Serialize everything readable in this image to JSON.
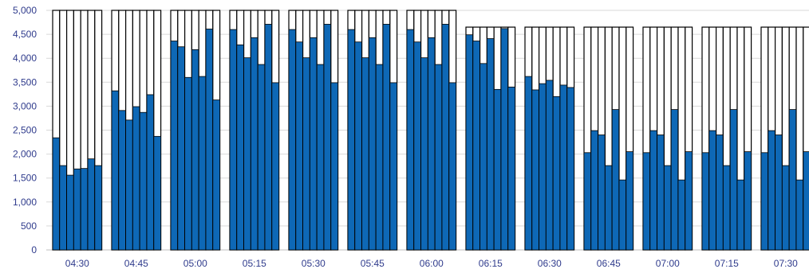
{
  "chart_data": {
    "type": "bar",
    "title": "",
    "xlabel": "",
    "ylabel": "",
    "ylim": [
      0,
      5000
    ],
    "yticks": [
      0,
      500,
      1000,
      1500,
      2000,
      2500,
      3000,
      3500,
      4000,
      4500,
      5000
    ],
    "ytick_labels": [
      "0",
      "500",
      "1,000",
      "1,500",
      "2,000",
      "2,500",
      "3,000",
      "3,500",
      "4,000",
      "4,500",
      "5,000"
    ],
    "grid": true,
    "categories": [
      "04:30",
      "04:45",
      "05:00",
      "05:15",
      "05:30",
      "05:45",
      "06:00",
      "06:15",
      "06:30",
      "06:45",
      "07:00",
      "07:15",
      "07:30"
    ],
    "capacity": [
      5000,
      5000,
      5000,
      5000,
      5000,
      5000,
      5000,
      4650,
      4650,
      4650,
      4650,
      4650,
      4650
    ],
    "values": [
      [
        2340,
        1760,
        1560,
        1690,
        1700,
        1900,
        1760
      ],
      [
        3320,
        2910,
        2710,
        2990,
        2870,
        3240,
        2370
      ],
      [
        4360,
        4240,
        3600,
        4180,
        3620,
        4610,
        3130
      ],
      [
        4600,
        4280,
        4010,
        4430,
        3870,
        4710,
        3490
      ],
      [
        4600,
        4340,
        4010,
        4430,
        3870,
        4710,
        3490
      ],
      [
        4600,
        4340,
        4010,
        4430,
        3870,
        4710,
        3490
      ],
      [
        4600,
        4340,
        4010,
        4430,
        3870,
        4710,
        3490
      ],
      [
        4490,
        4360,
        3890,
        4410,
        3350,
        4620,
        3400
      ],
      [
        3620,
        3340,
        3470,
        3540,
        3200,
        3440,
        3390
      ],
      [
        2030,
        2490,
        2400,
        1760,
        2930,
        1460,
        2050
      ],
      [
        2030,
        2490,
        2400,
        1760,
        2930,
        1460,
        2050
      ],
      [
        2030,
        2490,
        2400,
        1760,
        2930,
        1460,
        2050
      ],
      [
        2030,
        2490,
        2400,
        1760,
        2930,
        1460,
        2050
      ]
    ],
    "colors": {
      "bar_fill": "#0E68B6",
      "capacity_stroke": "#000000",
      "gridline": "#D9D9D9",
      "tick_text": "#2F3B8C",
      "axis_line": "#BFBFBF"
    }
  }
}
